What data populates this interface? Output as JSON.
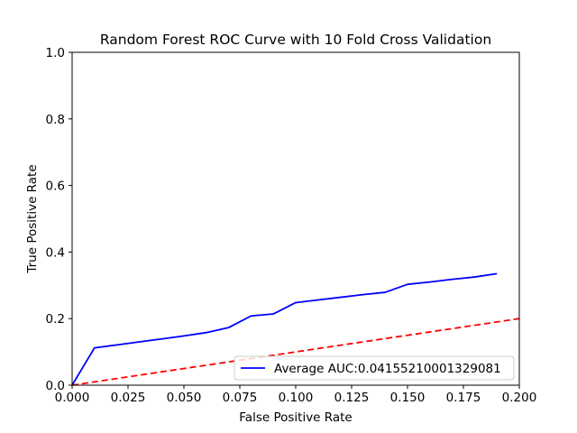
{
  "chart_data": {
    "type": "line",
    "title": "Random Forest ROC Curve with 10 Fold Cross Validation",
    "xlabel": "False Positive Rate",
    "ylabel": "True Positive Rate",
    "xlim": [
      0.0,
      0.2
    ],
    "ylim": [
      0.0,
      1.0
    ],
    "xticks": [
      "0.000",
      "0.025",
      "0.050",
      "0.075",
      "0.100",
      "0.125",
      "0.150",
      "0.175",
      "0.200"
    ],
    "yticks": [
      "0.0",
      "0.2",
      "0.4",
      "0.6",
      "0.8",
      "1.0"
    ],
    "grid": false,
    "legend_position": "lower right",
    "series": [
      {
        "name": "Average AUC:0.04155210001329081",
        "color": "#0000ff",
        "linestyle": "solid",
        "x": [
          0.0,
          0.01,
          0.02,
          0.03,
          0.04,
          0.05,
          0.06,
          0.07,
          0.08,
          0.09,
          0.1,
          0.11,
          0.12,
          0.13,
          0.14,
          0.15,
          0.16,
          0.17,
          0.18,
          0.19
        ],
        "y": [
          0.0,
          0.112,
          0.121,
          0.13,
          0.139,
          0.148,
          0.158,
          0.173,
          0.208,
          0.214,
          0.248,
          0.256,
          0.264,
          0.272,
          0.279,
          0.303,
          0.31,
          0.318,
          0.325,
          0.335
        ]
      },
      {
        "color": "#ff0000",
        "linestyle": "dashed",
        "x": [
          0.0,
          0.2
        ],
        "y": [
          0.0,
          0.2
        ]
      }
    ]
  }
}
